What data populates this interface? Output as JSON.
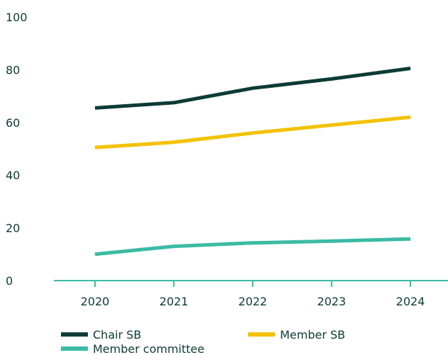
{
  "chart_data": {
    "type": "line",
    "title": "",
    "xlabel": "",
    "ylabel": "",
    "categories": [
      "2020",
      "2021",
      "2022",
      "2023",
      "2024"
    ],
    "ylim": [
      0,
      100
    ],
    "yticks": [
      0,
      20,
      40,
      60,
      80,
      100
    ],
    "grid": false,
    "legend_position": "bottom",
    "series": [
      {
        "name": "Chair SB",
        "color": "#0d3b36",
        "values": [
          65.5,
          67.5,
          73,
          76.5,
          80.5
        ]
      },
      {
        "name": "Member SB",
        "color": "#f2c200",
        "values": [
          50.5,
          52.5,
          56,
          59,
          62
        ]
      },
      {
        "name": "Member committee",
        "color": "#3bbba4",
        "values": [
          10,
          13,
          14.3,
          15,
          15.8
        ]
      }
    ],
    "axis_color": "#3bbba4",
    "text_color": "#0d3b36"
  }
}
